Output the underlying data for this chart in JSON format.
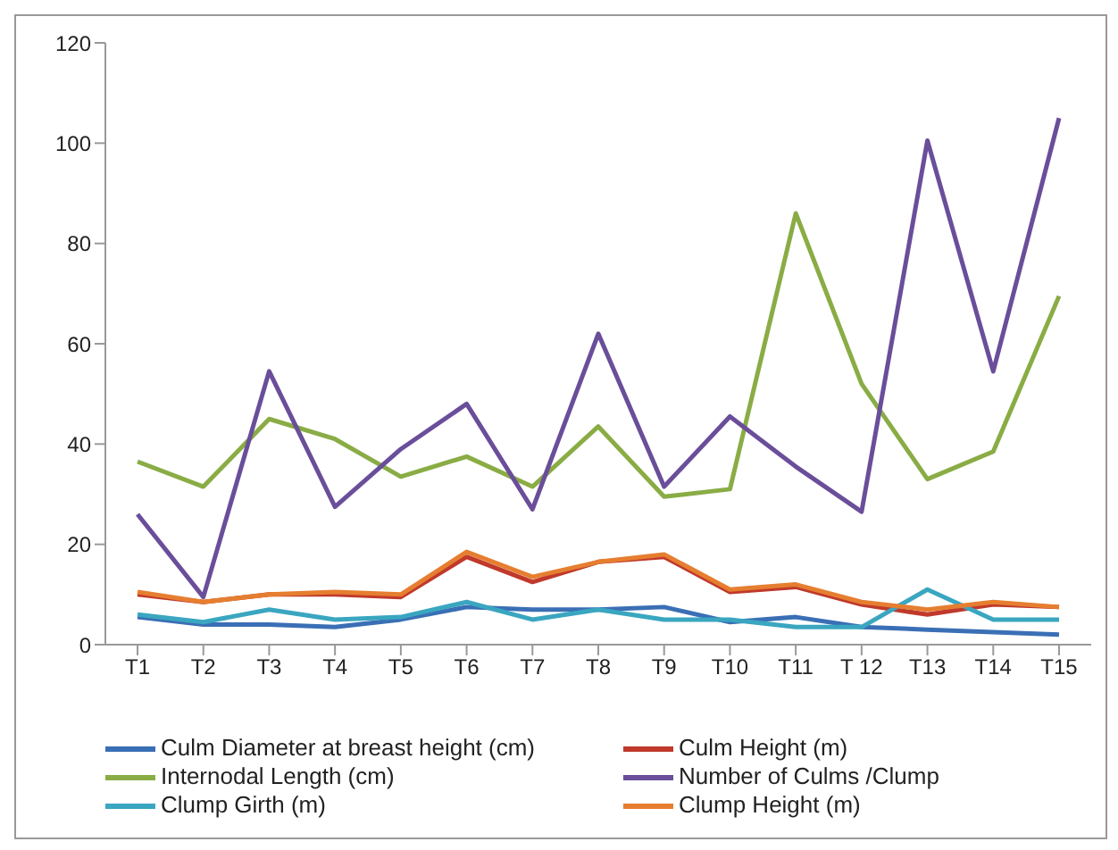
{
  "chart_data": {
    "type": "line",
    "categories": [
      "T1",
      "T2",
      "T3",
      "T4",
      "T5",
      "T6",
      "T7",
      "T8",
      "T9",
      "T10",
      "T11",
      "T 12",
      "T13",
      "T14",
      "T15"
    ],
    "series": [
      {
        "name": "Culm Diameter at breast height (cm)",
        "color": "#3a6fb5",
        "values": [
          5.5,
          4,
          4,
          3.5,
          5,
          7.5,
          7,
          7,
          7.5,
          4.5,
          5.5,
          3.5,
          3,
          2.5,
          2
        ]
      },
      {
        "name": "Culm Height (m)",
        "color": "#c0392b",
        "values": [
          10,
          8.5,
          10,
          10,
          9.5,
          17.5,
          12.5,
          16.5,
          17.5,
          10.5,
          11.5,
          8,
          6,
          8,
          7.5
        ]
      },
      {
        "name": "Internodal Length (cm)",
        "color": "#8aac45",
        "values": [
          36.5,
          31.5,
          45,
          41,
          33.5,
          37.5,
          31.5,
          43.5,
          29.5,
          31,
          86,
          52,
          33,
          38.5,
          69.5
        ]
      },
      {
        "name": "Number of Culms /Clump",
        "color": "#6a4e9a",
        "values": [
          26,
          9.5,
          54.5,
          27.5,
          39,
          48,
          27,
          62,
          31.5,
          45.5,
          35.5,
          26.5,
          100.5,
          54.5,
          105
        ]
      },
      {
        "name": "Clump Girth (m)",
        "color": "#3aa6c0",
        "values": [
          6,
          4.5,
          7,
          5,
          5.5,
          8.5,
          5,
          7,
          5,
          5,
          3.5,
          3.5,
          11,
          5,
          5
        ]
      },
      {
        "name": "Clump Height (m)",
        "color": "#e67e30",
        "values": [
          10.5,
          8.5,
          10,
          10.5,
          10,
          18.5,
          13.5,
          16.5,
          18,
          11,
          12,
          8.5,
          7,
          8.5,
          7.5
        ]
      }
    ],
    "ylim": [
      0,
      120
    ],
    "yticks": [
      0,
      20,
      40,
      60,
      80,
      100,
      120
    ],
    "grid": false,
    "legend": "bottom",
    "marker": "none",
    "line_style": "solid"
  }
}
